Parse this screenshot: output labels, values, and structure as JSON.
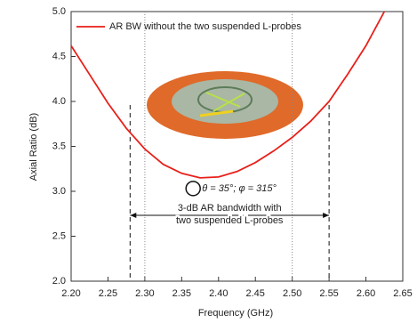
{
  "chart_data": {
    "type": "line",
    "x_label": "Frequency (GHz)",
    "y_label": "Axial Ratio (dB)",
    "xlim": [
      2.2,
      2.65
    ],
    "ylim": [
      2.0,
      5.0
    ],
    "xticks": [
      {
        "value": 2.2,
        "label": "2.20"
      },
      {
        "value": 2.25,
        "label": "2.25"
      },
      {
        "value": 2.3,
        "label": "2.30"
      },
      {
        "value": 2.35,
        "label": "2.35"
      },
      {
        "value": 2.4,
        "label": "2.40"
      },
      {
        "value": 2.45,
        "label": "2.45"
      },
      {
        "value": 2.5,
        "label": "2.50"
      },
      {
        "value": 2.55,
        "label": "2.55"
      },
      {
        "value": 2.6,
        "label": "2.60"
      },
      {
        "value": 2.65,
        "label": "2.65"
      }
    ],
    "yticks": [
      {
        "value": 2.0,
        "label": "2.0"
      },
      2.5,
      {
        "value": 3.0,
        "label": "3.0"
      },
      3.5,
      {
        "value": 4.0,
        "label": "4.0"
      },
      4.5,
      {
        "value": 5.0,
        "label": "5.0"
      }
    ],
    "series": [
      {
        "name": "AR BW without the two suspended L-probes",
        "color": "#e8201a",
        "x": [
          2.2,
          2.225,
          2.25,
          2.275,
          2.3,
          2.325,
          2.35,
          2.375,
          2.4,
          2.425,
          2.45,
          2.475,
          2.5,
          2.525,
          2.55,
          2.575,
          2.6,
          2.625
        ],
        "values": [
          4.62,
          4.3,
          3.98,
          3.7,
          3.47,
          3.3,
          3.2,
          3.15,
          3.16,
          3.22,
          3.32,
          3.45,
          3.6,
          3.78,
          4.0,
          4.3,
          4.62,
          5.0
        ]
      }
    ],
    "reference_lines": [
      2.3,
      2.5
    ],
    "bandwidth_edges": [
      2.28,
      2.55
    ],
    "bandwidth_label": [
      "3-dB AR bandwidth with",
      "two suspended L-probes"
    ],
    "marker": {
      "x": 2.38,
      "y": 3.15,
      "label": "θ = 35°; φ = 315°"
    }
  }
}
